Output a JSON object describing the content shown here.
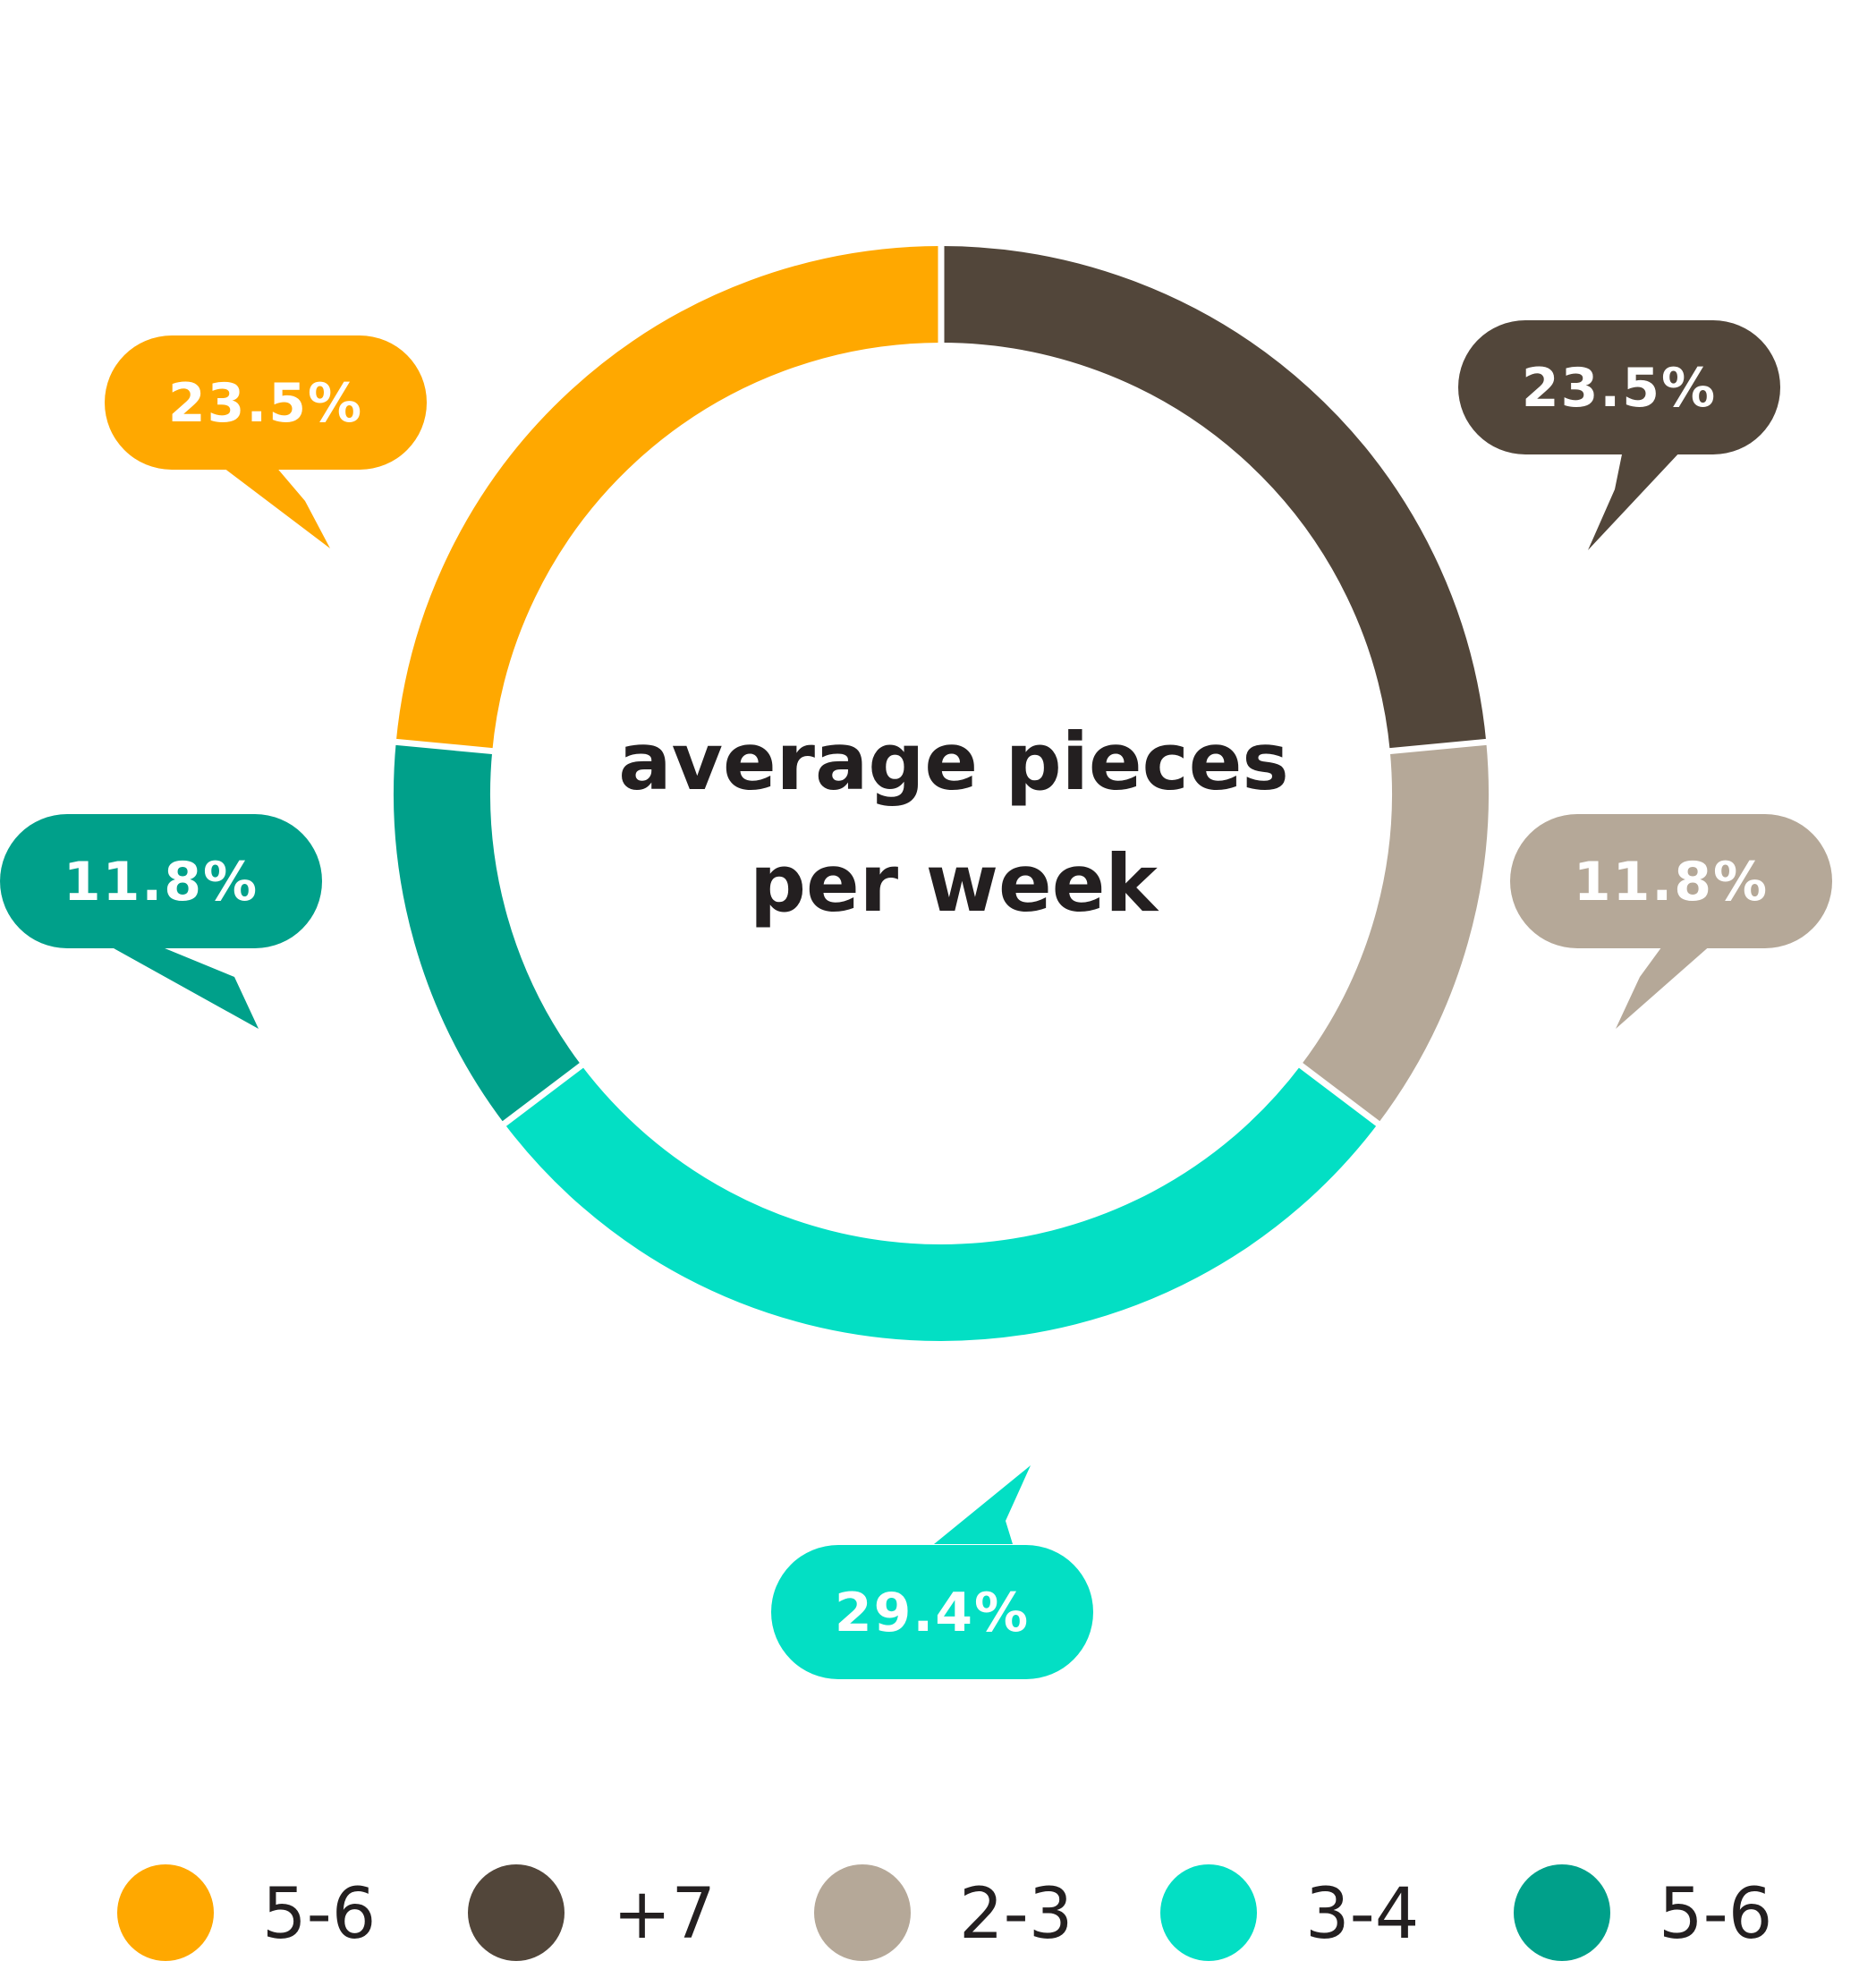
{
  "chart_data": {
    "type": "pie",
    "title": [
      "average pieces",
      "per week"
    ],
    "categories": [
      "5-6",
      "+7",
      "2-3",
      "3-4",
      "5-6"
    ],
    "values": [
      23.5,
      23.5,
      11.8,
      29.4,
      11.8
    ],
    "labels": [
      "23.5%",
      "23.5%",
      "11.8%",
      "29.4%",
      "11.8%"
    ],
    "colors": [
      "#FFA800",
      "#52463A",
      "#B5A898",
      "#03DFC4",
      "#00A08A"
    ],
    "legend": [
      {
        "label": "5-6",
        "color": "#FFA800"
      },
      {
        "label": "+7",
        "color": "#52463A"
      },
      {
        "label": "2-3",
        "color": "#B5A898"
      },
      {
        "label": "3-4",
        "color": "#03DFC4"
      },
      {
        "label": "5-6",
        "color": "#00A08A"
      }
    ],
    "slices": [
      {
        "category": "+7",
        "value": 23.5,
        "label": "23.5%",
        "color": "#52463A"
      },
      {
        "category": "2-3",
        "value": 11.8,
        "label": "11.8%",
        "color": "#B5A898"
      },
      {
        "category": "3-4",
        "value": 29.4,
        "label": "29.4%",
        "color": "#03DFC4"
      },
      {
        "category": "5-6",
        "value": 11.8,
        "label": "11.8%",
        "color": "#00A08A"
      },
      {
        "category": "5-6",
        "value": 23.5,
        "label": "23.5%",
        "color": "#FFA800"
      }
    ],
    "legend_position": "bottom"
  }
}
